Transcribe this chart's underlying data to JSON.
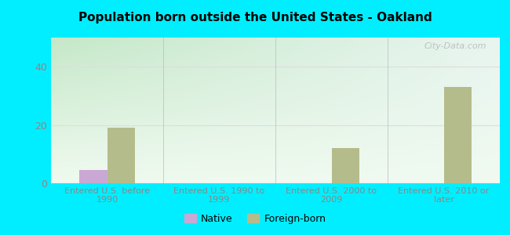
{
  "title": "Population born outside the United States - Oakland",
  "categories": [
    "Entered U.S. before\n1990",
    "Entered U.S. 1990 to\n1999",
    "Entered U.S. 2000 to\n2009",
    "Entered U.S. 2010 or\nlater"
  ],
  "native_values": [
    4.5,
    0,
    0,
    0
  ],
  "foreign_values": [
    19,
    0,
    12,
    33
  ],
  "native_color": "#c9a8d4",
  "foreign_color": "#b5bc8c",
  "bg_color_top_left": "#c5e8c8",
  "bg_color_top_right": "#e8f5f0",
  "bg_color_bottom": "#f0faf0",
  "outer_bg": "#00eeff",
  "ylim": [
    0,
    50
  ],
  "yticks": [
    0,
    20,
    40
  ],
  "bar_width": 0.25,
  "legend_native": "Native",
  "legend_foreign": "Foreign-born",
  "watermark": "City-Data.com",
  "tick_color": "#888888",
  "xlabel_color": "#888888",
  "grid_color": "#dddddd"
}
